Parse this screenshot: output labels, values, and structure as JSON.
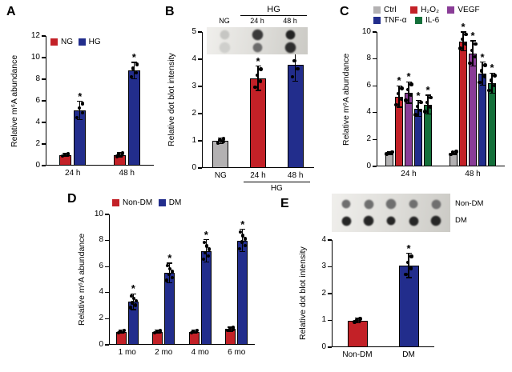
{
  "chart_data": [
    {
      "id": "A",
      "panel_label": "A",
      "type": "bar",
      "ylabel": "Relative m⁶A abundance",
      "ylim": [
        0,
        12
      ],
      "yticks": [
        0,
        2,
        4,
        6,
        8,
        10,
        12
      ],
      "categories": [
        "24 h",
        "48 h"
      ],
      "series": [
        {
          "name": "NG",
          "color": "#c32127",
          "values": [
            1.0,
            1.0
          ],
          "errors": [
            0.15,
            0.18
          ],
          "sig": [
            "",
            ""
          ]
        },
        {
          "name": "HG",
          "color": "#222d8c",
          "values": [
            5.1,
            8.8
          ],
          "errors": [
            0.85,
            0.75
          ],
          "sig": [
            "*",
            "*"
          ]
        }
      ],
      "legend_position": "top-inside",
      "grid": false
    },
    {
      "id": "B",
      "panel_label": "B",
      "type": "bar",
      "ylabel": "Relative dot blot intensity",
      "ylim": [
        0,
        5
      ],
      "yticks": [
        0,
        1,
        2,
        3,
        4,
        5
      ],
      "categories": [
        "NG",
        "24 h",
        "48 h"
      ],
      "series": [
        {
          "name": "dot blot intensity",
          "colors": [
            "#b3b1b2",
            "#c32127",
            "#222d8c"
          ],
          "values": [
            1.0,
            3.3,
            3.8
          ],
          "errors": [
            0.1,
            0.45,
            0.6
          ],
          "sig": [
            "",
            "*",
            "*"
          ]
        }
      ],
      "group_label": {
        "text": "HG",
        "span": [
          1,
          2
        ]
      },
      "inset": {
        "header": "HG",
        "columns": [
          "NG",
          "24 h",
          "48 h"
        ],
        "rows": 2
      },
      "grid": false
    },
    {
      "id": "C",
      "panel_label": "C",
      "type": "bar",
      "ylabel": "Relative m⁶A abundance",
      "ylim": [
        0,
        10
      ],
      "yticks": [
        0,
        2,
        4,
        6,
        8,
        10
      ],
      "categories": [
        "24 h",
        "48 h"
      ],
      "series": [
        {
          "name": "Ctrl",
          "color": "#b3b1b2",
          "values": [
            1.0,
            1.0
          ],
          "errors": [
            0.1,
            0.12
          ],
          "sig": [
            "",
            ""
          ]
        },
        {
          "name": "H₂O₂",
          "color": "#c32127",
          "values": [
            5.2,
            9.3
          ],
          "errors": [
            0.8,
            0.7
          ],
          "sig": [
            "*",
            "*"
          ]
        },
        {
          "name": "VEGF",
          "color": "#8a3d97",
          "values": [
            5.5,
            8.4
          ],
          "errors": [
            0.8,
            0.95
          ],
          "sig": [
            "*",
            "*"
          ]
        },
        {
          "name": "TNF-α",
          "color": "#222d8c",
          "values": [
            4.3,
            6.9
          ],
          "errors": [
            0.6,
            0.85
          ],
          "sig": [
            "*",
            "*"
          ]
        },
        {
          "name": "IL-6",
          "color": "#14703a",
          "values": [
            4.6,
            6.2
          ],
          "errors": [
            0.7,
            0.75
          ],
          "sig": [
            "*",
            "*"
          ]
        }
      ],
      "legend_position": "top",
      "grid": false
    },
    {
      "id": "D",
      "panel_label": "D",
      "type": "bar",
      "ylabel": "Relative m⁶A abundance",
      "ylim": [
        0,
        10
      ],
      "yticks": [
        0,
        2,
        4,
        6,
        8,
        10
      ],
      "categories": [
        "1 mo",
        "2 mo",
        "4 mo",
        "6 mo"
      ],
      "series": [
        {
          "name": "Non-DM",
          "color": "#c32127",
          "values": [
            1.0,
            1.0,
            1.0,
            1.2
          ],
          "errors": [
            0.12,
            0.12,
            0.12,
            0.15
          ],
          "sig": [
            "",
            "",
            "",
            ""
          ]
        },
        {
          "name": "DM",
          "color": "#222d8c",
          "values": [
            3.3,
            5.5,
            7.2,
            8.0
          ],
          "errors": [
            0.6,
            0.75,
            0.85,
            0.85
          ],
          "sig": [
            "*",
            "*",
            "*",
            "*"
          ]
        }
      ],
      "legend_position": "top",
      "grid": false
    },
    {
      "id": "E",
      "panel_label": "E",
      "type": "bar",
      "ylabel": "Relative dot blot intensity",
      "ylim": [
        0,
        4
      ],
      "yticks": [
        0,
        1,
        2,
        3,
        4
      ],
      "categories": [
        "Non-DM",
        "DM"
      ],
      "series": [
        {
          "name": "dot blot intensity",
          "colors": [
            "#c32127",
            "#222d8c"
          ],
          "values": [
            1.0,
            3.05
          ],
          "errors": [
            0.08,
            0.45
          ],
          "sig": [
            "",
            "*"
          ]
        }
      ],
      "inset": {
        "rows": [
          {
            "label": "Non-DM"
          },
          {
            "label": "DM"
          }
        ],
        "dots_per_row": 5
      },
      "grid": false
    }
  ],
  "significance_symbol": "*"
}
